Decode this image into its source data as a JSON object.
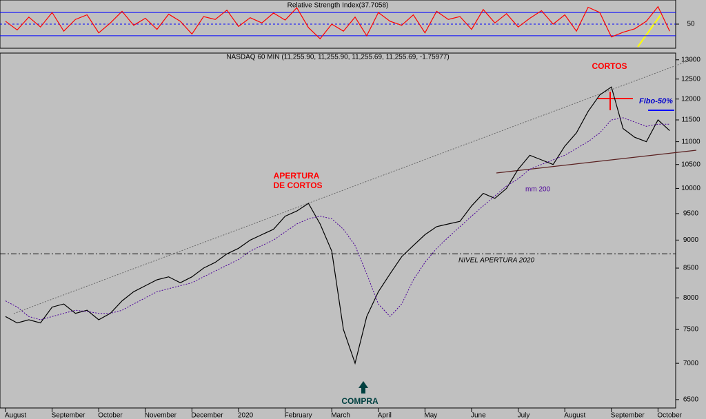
{
  "chart_data": [
    {
      "type": "line",
      "title": "Relative Strength Index(37.7058)",
      "values": [
        55,
        40,
        62,
        45,
        70,
        38,
        58,
        66,
        35,
        52,
        72,
        48,
        60,
        41,
        67,
        55,
        33,
        63,
        58,
        74,
        46,
        61,
        52,
        69,
        57,
        78,
        44,
        25,
        50,
        38,
        62,
        30,
        70,
        55,
        48,
        66,
        35,
        72,
        58,
        63,
        41,
        75,
        52,
        68,
        45,
        60,
        73,
        50,
        66,
        38,
        79,
        70,
        28,
        36,
        42,
        55,
        80,
        38
      ],
      "color": "#ff0000",
      "ylim": [
        11,
        89
      ],
      "yticks": [
        50
      ],
      "levels": [
        30,
        70
      ]
    },
    {
      "type": "line",
      "title": "NASDAQ 60 MIN (11,255.90, 11,255.90, 11,255.69, 11,255.69, -1.75977)",
      "categories": [
        "August",
        null,
        null,
        null,
        "September",
        null,
        null,
        null,
        "October",
        null,
        null,
        null,
        "November",
        null,
        null,
        null,
        "December",
        null,
        null,
        null,
        "2020",
        null,
        null,
        null,
        "February",
        null,
        null,
        null,
        "March",
        null,
        null,
        null,
        "April",
        null,
        null,
        null,
        "May",
        null,
        null,
        null,
        "June",
        null,
        null,
        null,
        "July",
        null,
        null,
        null,
        "August",
        null,
        null,
        null,
        "September",
        null,
        null,
        null,
        "October",
        null
      ],
      "series": [
        {
          "name": "NASDAQ 60 MIN",
          "color": "#000000",
          "values": [
            7700,
            7600,
            7650,
            7600,
            7850,
            7900,
            7750,
            7800,
            7650,
            7750,
            7950,
            8100,
            8200,
            8300,
            8350,
            8250,
            8350,
            8500,
            8600,
            8750,
            8850,
            9000,
            9100,
            9200,
            9450,
            9550,
            9700,
            9300,
            8800,
            7500,
            7000,
            7700,
            8100,
            8400,
            8700,
            8900,
            9100,
            9250,
            9300,
            9350,
            9650,
            9900,
            9800,
            10000,
            10400,
            10700,
            10600,
            10500,
            10900,
            11200,
            11700,
            12100,
            12300,
            11300,
            11100,
            11000,
            11500,
            11250
          ]
        },
        {
          "name": "mm 200",
          "color": "#4b0099",
          "values": [
            7950,
            7850,
            7700,
            7650,
            7700,
            7750,
            7800,
            7780,
            7750,
            7750,
            7800,
            7900,
            8000,
            8100,
            8150,
            8200,
            8250,
            8350,
            8450,
            8550,
            8650,
            8800,
            8900,
            9000,
            9150,
            9300,
            9400,
            9450,
            9400,
            9200,
            8900,
            8400,
            7900,
            7700,
            7900,
            8300,
            8600,
            8850,
            9050,
            9250,
            9450,
            9650,
            9850,
            10050,
            10200,
            10400,
            10500,
            10600,
            10700,
            10850,
            11000,
            11200,
            11500,
            11550,
            11450,
            11350,
            11400,
            11400
          ]
        }
      ],
      "ylim": [
        6390,
        13180
      ],
      "log": true,
      "yticks": [
        6500,
        7000,
        7500,
        8000,
        8500,
        9000,
        9500,
        10000,
        10500,
        11000,
        11500,
        12000,
        12500,
        13000
      ],
      "reference_line": 8750,
      "annotations": [
        "APERTURA",
        "DE CORTOS",
        "CORTOS",
        "Fibo-50%",
        "NIVEL APERTURA 2020",
        "COMPRA"
      ]
    }
  ]
}
